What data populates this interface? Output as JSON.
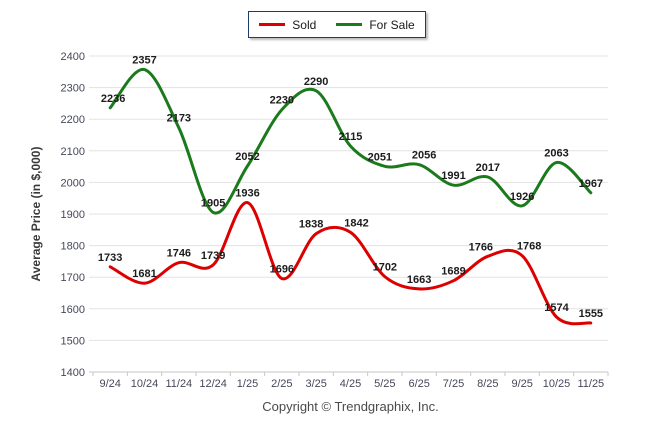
{
  "legend": {
    "items": [
      {
        "label": "Sold",
        "color": "#dd0000"
      },
      {
        "label": "For Sale",
        "color": "#1b7a1b"
      }
    ]
  },
  "chart_data": {
    "type": "line",
    "title": "",
    "xlabel": "",
    "ylabel": "Average Price (in $,000)",
    "categories": [
      "9/24",
      "10/24",
      "11/24",
      "12/24",
      "1/25",
      "2/25",
      "3/25",
      "4/25",
      "5/25",
      "6/25",
      "7/25",
      "8/25",
      "9/25",
      "10/25",
      "11/25"
    ],
    "series": [
      {
        "name": "Sold",
        "color": "#dd0000",
        "values": [
          1733,
          1681,
          1746,
          1739,
          1936,
          1696,
          1838,
          1842,
          1702,
          1663,
          1689,
          1766,
          1768,
          1574,
          1555
        ]
      },
      {
        "name": "For Sale",
        "color": "#1b7a1b",
        "values": [
          2236,
          2357,
          2173,
          1905,
          2052,
          2230,
          2290,
          2115,
          2051,
          2056,
          1991,
          2017,
          1926,
          2063,
          1967
        ]
      }
    ],
    "ylim": [
      1400,
      2400
    ],
    "ytick_step": 100,
    "grid": true,
    "smooth": true,
    "data_labels": true,
    "legend_position": "top-center",
    "colors": {
      "grid": "#e3e3e3",
      "axis": "#c6c6c6",
      "tick_label": "#45485a",
      "data_label": "#1c1c1c",
      "axis_title": "#3a3a3a"
    }
  },
  "footer": {
    "copyright": "Copyright © Trendgraphix, Inc."
  }
}
